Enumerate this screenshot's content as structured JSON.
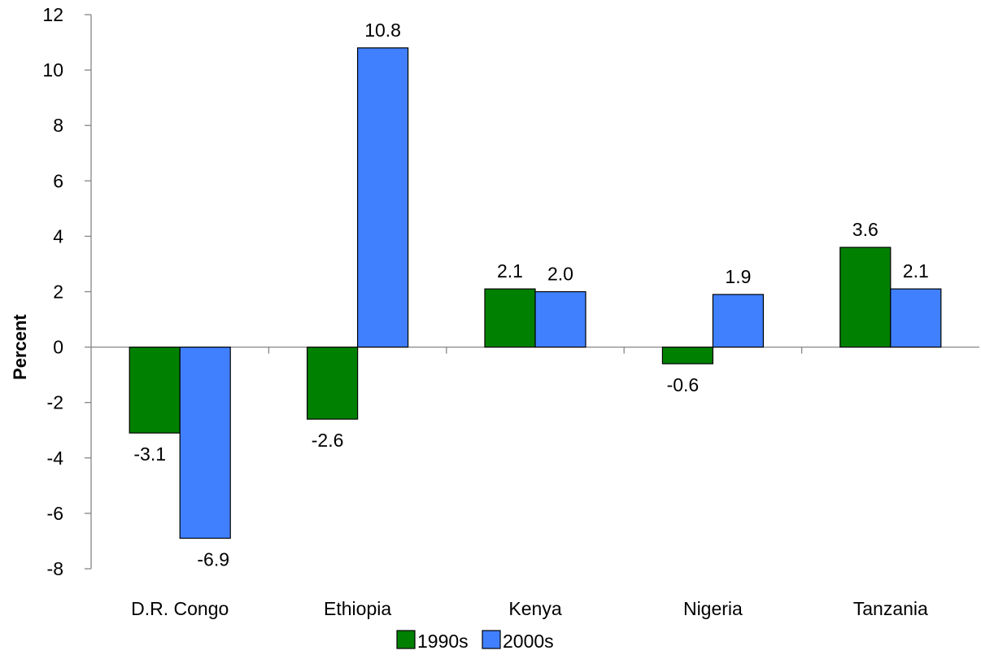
{
  "chart_data": {
    "type": "bar",
    "categories": [
      "D.R. Congo",
      "Ethiopia",
      "Kenya",
      "Nigeria",
      "Tanzania"
    ],
    "series": [
      {
        "name": "1990s",
        "color": "#008000",
        "values": [
          -3.1,
          -2.6,
          2.1,
          -0.6,
          3.6
        ],
        "labels": [
          "-3.1",
          "-2.6",
          "2.1",
          "-0.6",
          "3.6"
        ]
      },
      {
        "name": "2000s",
        "color": "#4080FF",
        "values": [
          -6.9,
          10.8,
          2.0,
          1.9,
          2.1
        ],
        "labels": [
          "-6.9",
          "10.8",
          "2.0",
          "1.9",
          "2.1"
        ]
      }
    ],
    "ylabel": "Percent",
    "xlabel": "",
    "ylim": [
      -8,
      12
    ],
    "yticks": [
      "-8",
      "-6",
      "-4",
      "-2",
      "0",
      "2",
      "4",
      "6",
      "8",
      "10",
      "12"
    ],
    "grid": false,
    "legend_position": "bottom"
  }
}
